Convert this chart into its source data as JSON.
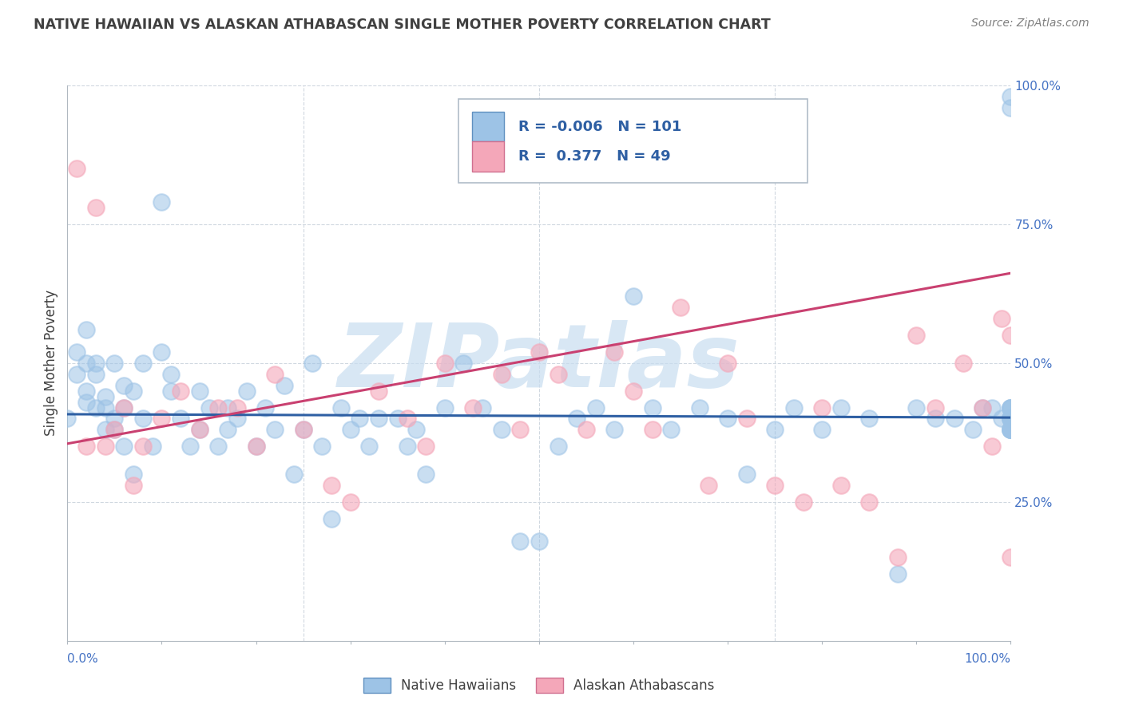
{
  "title": "NATIVE HAWAIIAN VS ALASKAN ATHABASCAN SINGLE MOTHER POVERTY CORRELATION CHART",
  "source": "Source: ZipAtlas.com",
  "ylabel": "Single Mother Poverty",
  "ytick_labels": [
    "25.0%",
    "50.0%",
    "75.0%",
    "100.0%"
  ],
  "ytick_values": [
    0.25,
    0.5,
    0.75,
    1.0
  ],
  "xtick_labels_outer": [
    "0.0%",
    "100.0%"
  ],
  "xtick_positions_outer": [
    0.0,
    1.0
  ],
  "legend_label1": "Native Hawaiians",
  "legend_label2": "Alaskan Athabascans",
  "R1": -0.006,
  "N1": 101,
  "R2": 0.377,
  "N2": 49,
  "color1": "#9dc3e6",
  "color2": "#f4a7b9",
  "line_color1": "#2e5fa3",
  "line_color2": "#c94070",
  "watermark": "ZIPatlas",
  "watermark_color": "#c8ddf0",
  "background_color": "#ffffff",
  "grid_color": "#d0d8e0",
  "xlim": [
    0,
    1
  ],
  "ylim": [
    0,
    1
  ],
  "native_hawaiian_x": [
    0.0,
    0.01,
    0.01,
    0.02,
    0.02,
    0.02,
    0.02,
    0.03,
    0.03,
    0.03,
    0.04,
    0.04,
    0.04,
    0.05,
    0.05,
    0.05,
    0.06,
    0.06,
    0.06,
    0.07,
    0.07,
    0.08,
    0.08,
    0.09,
    0.1,
    0.1,
    0.11,
    0.11,
    0.12,
    0.13,
    0.14,
    0.14,
    0.15,
    0.16,
    0.17,
    0.17,
    0.18,
    0.19,
    0.2,
    0.21,
    0.22,
    0.23,
    0.24,
    0.25,
    0.26,
    0.27,
    0.28,
    0.29,
    0.3,
    0.31,
    0.32,
    0.33,
    0.35,
    0.36,
    0.37,
    0.38,
    0.4,
    0.42,
    0.44,
    0.46,
    0.48,
    0.5,
    0.52,
    0.54,
    0.56,
    0.58,
    0.6,
    0.62,
    0.64,
    0.67,
    0.7,
    0.72,
    0.75,
    0.77,
    0.8,
    0.82,
    0.85,
    0.88,
    0.9,
    0.92,
    0.94,
    0.96,
    0.97,
    0.98,
    0.99,
    1.0,
    1.0,
    1.0,
    1.0,
    1.0,
    1.0,
    1.0,
    1.0,
    1.0,
    1.0,
    1.0,
    1.0,
    1.0,
    1.0,
    1.0,
    1.0
  ],
  "native_hawaiian_y": [
    0.4,
    0.48,
    0.52,
    0.56,
    0.5,
    0.45,
    0.43,
    0.42,
    0.48,
    0.5,
    0.44,
    0.42,
    0.38,
    0.38,
    0.4,
    0.5,
    0.42,
    0.46,
    0.35,
    0.3,
    0.45,
    0.4,
    0.5,
    0.35,
    0.79,
    0.52,
    0.45,
    0.48,
    0.4,
    0.35,
    0.38,
    0.45,
    0.42,
    0.35,
    0.38,
    0.42,
    0.4,
    0.45,
    0.35,
    0.42,
    0.38,
    0.46,
    0.3,
    0.38,
    0.5,
    0.35,
    0.22,
    0.42,
    0.38,
    0.4,
    0.35,
    0.4,
    0.4,
    0.35,
    0.38,
    0.3,
    0.42,
    0.5,
    0.42,
    0.38,
    0.18,
    0.18,
    0.35,
    0.4,
    0.42,
    0.38,
    0.62,
    0.42,
    0.38,
    0.42,
    0.4,
    0.3,
    0.38,
    0.42,
    0.38,
    0.42,
    0.4,
    0.12,
    0.42,
    0.4,
    0.4,
    0.38,
    0.42,
    0.42,
    0.4,
    0.98,
    0.96,
    0.38,
    0.4,
    0.42,
    0.4,
    0.38,
    0.42,
    0.4,
    0.38,
    0.42,
    0.4,
    0.38,
    0.42,
    0.4,
    0.38
  ],
  "athabascan_x": [
    0.01,
    0.02,
    0.03,
    0.04,
    0.05,
    0.06,
    0.07,
    0.08,
    0.1,
    0.12,
    0.14,
    0.16,
    0.18,
    0.2,
    0.22,
    0.25,
    0.28,
    0.3,
    0.33,
    0.36,
    0.38,
    0.4,
    0.43,
    0.46,
    0.48,
    0.5,
    0.52,
    0.55,
    0.58,
    0.6,
    0.62,
    0.65,
    0.68,
    0.7,
    0.72,
    0.75,
    0.78,
    0.8,
    0.82,
    0.85,
    0.88,
    0.9,
    0.92,
    0.95,
    0.97,
    0.98,
    0.99,
    1.0,
    1.0
  ],
  "athabascan_y": [
    0.85,
    0.35,
    0.78,
    0.35,
    0.38,
    0.42,
    0.28,
    0.35,
    0.4,
    0.45,
    0.38,
    0.42,
    0.42,
    0.35,
    0.48,
    0.38,
    0.28,
    0.25,
    0.45,
    0.4,
    0.35,
    0.5,
    0.42,
    0.48,
    0.38,
    0.52,
    0.48,
    0.38,
    0.52,
    0.45,
    0.38,
    0.6,
    0.28,
    0.5,
    0.4,
    0.28,
    0.25,
    0.42,
    0.28,
    0.25,
    0.15,
    0.55,
    0.42,
    0.5,
    0.42,
    0.35,
    0.58,
    0.55,
    0.15
  ],
  "trend1_x0": 0.0,
  "trend1_x1": 1.0,
  "trend1_y0": 0.408,
  "trend1_y1": 0.402,
  "trend2_x0": 0.0,
  "trend2_x1": 1.0,
  "trend2_y0": 0.355,
  "trend2_y1": 0.662
}
